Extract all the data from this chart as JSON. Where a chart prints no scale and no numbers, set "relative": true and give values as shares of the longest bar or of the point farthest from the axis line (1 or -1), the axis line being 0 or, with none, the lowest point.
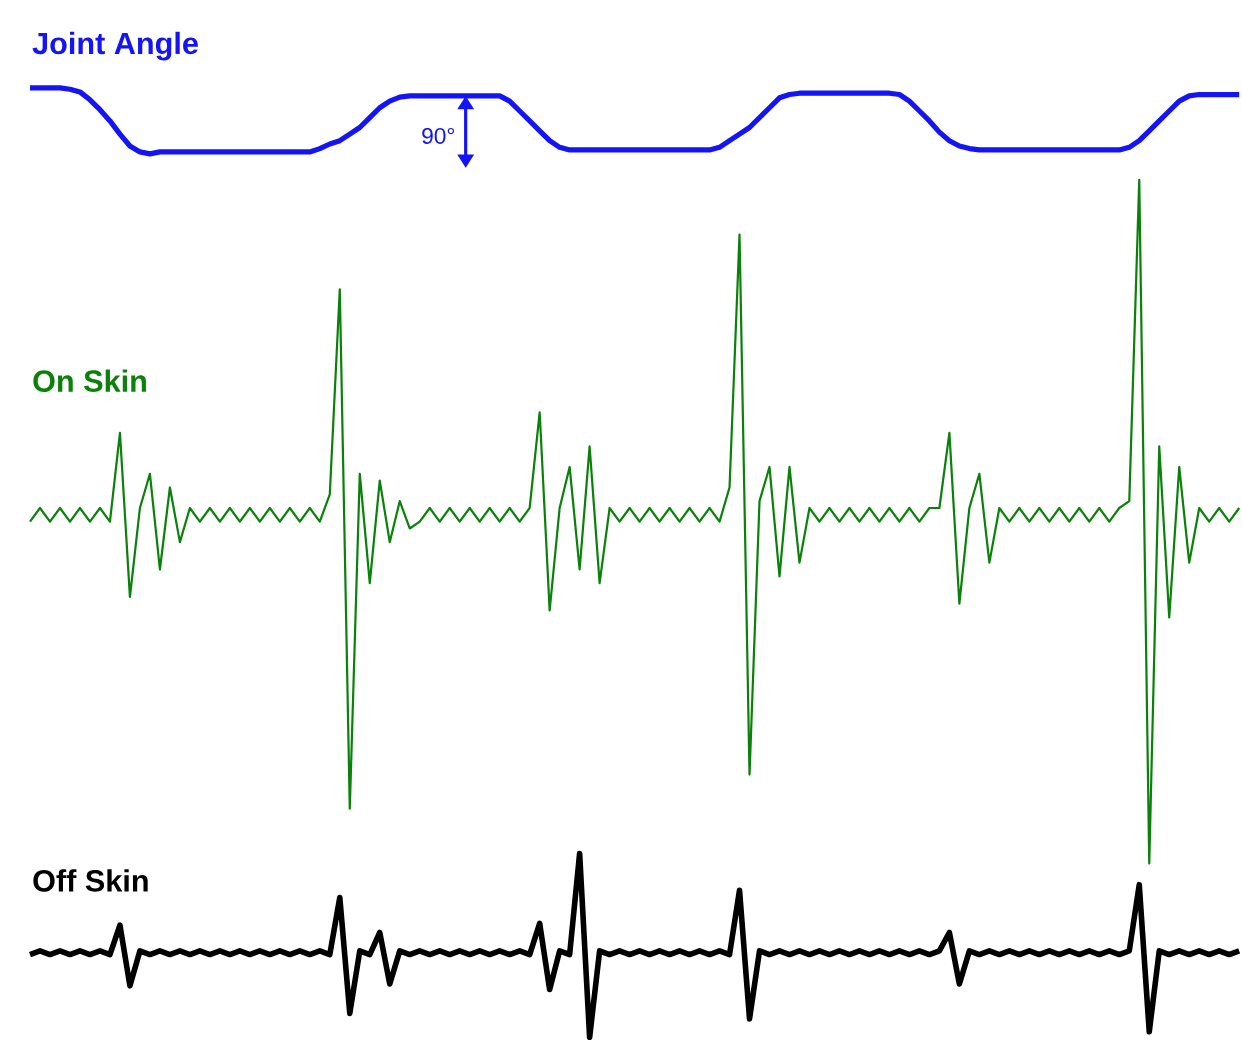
{
  "chart_data": [
    {
      "type": "line",
      "title": "Joint Angle",
      "relative": true,
      "color": "#1414f5",
      "annotations": [
        "90°"
      ],
      "categories": [
        null,
        null,
        null,
        null,
        null,
        null,
        null,
        null,
        null,
        null,
        null,
        null,
        null,
        null,
        null,
        null,
        null,
        null,
        null,
        null,
        null,
        null,
        null,
        null,
        null,
        null,
        null,
        null,
        null,
        null,
        null,
        null,
        null,
        null,
        null,
        null,
        null,
        null,
        null,
        null,
        null,
        null,
        null,
        null,
        null,
        null,
        null,
        null,
        null,
        null,
        null,
        null,
        null,
        null,
        null,
        null,
        null,
        null,
        null,
        null,
        null,
        null,
        null,
        null,
        null,
        null,
        null,
        null,
        null,
        null,
        null,
        null,
        null,
        null,
        null,
        null,
        null,
        null,
        null,
        null,
        null,
        null,
        null,
        null,
        null,
        null,
        null,
        null,
        null,
        null,
        null,
        null,
        null,
        null,
        null,
        null,
        null,
        null,
        null,
        null,
        null,
        null,
        null,
        null,
        null,
        null,
        null,
        null,
        null,
        null,
        null,
        null,
        null,
        null,
        null,
        null,
        null,
        null,
        null,
        null,
        null,
        null
      ],
      "values": [
        1,
        1,
        1,
        1,
        0.98,
        0.94,
        0.82,
        0.67,
        0.5,
        0.3,
        0.12,
        0.03,
        0,
        0.03,
        0.03,
        0.03,
        0.03,
        0.03,
        0.03,
        0.03,
        0.03,
        0.03,
        0.03,
        0.03,
        0.03,
        0.03,
        0.03,
        0.03,
        0.03,
        0.08,
        0.15,
        0.2,
        0.3,
        0.4,
        0.55,
        0.7,
        0.8,
        0.86,
        0.88,
        0.88,
        0.88,
        0.88,
        0.88,
        0.88,
        0.88,
        0.88,
        0.88,
        0.88,
        0.8,
        0.65,
        0.5,
        0.35,
        0.2,
        0.1,
        0.06,
        0.06,
        0.06,
        0.06,
        0.06,
        0.06,
        0.06,
        0.06,
        0.06,
        0.06,
        0.06,
        0.06,
        0.06,
        0.06,
        0.06,
        0.1,
        0.2,
        0.3,
        0.4,
        0.55,
        0.7,
        0.85,
        0.9,
        0.92,
        0.92,
        0.92,
        0.92,
        0.92,
        0.92,
        0.92,
        0.92,
        0.92,
        0.92,
        0.9,
        0.8,
        0.65,
        0.5,
        0.33,
        0.2,
        0.12,
        0.08,
        0.06,
        0.06,
        0.06,
        0.06,
        0.06,
        0.06,
        0.06,
        0.06,
        0.06,
        0.06,
        0.06,
        0.06,
        0.06,
        0.06,
        0.06,
        0.1,
        0.2,
        0.35,
        0.5,
        0.65,
        0.8,
        0.88,
        0.9,
        0.9,
        0.9,
        0.9,
        0.9
      ]
    },
    {
      "type": "line",
      "title": "On Skin",
      "relative": true,
      "color": "#0a820a",
      "categories": [
        null,
        null,
        null,
        null,
        null,
        null,
        null,
        null,
        null,
        null,
        null,
        null,
        null,
        null,
        null,
        null,
        null,
        null,
        null,
        null,
        null,
        null,
        null,
        null,
        null,
        null,
        null,
        null,
        null,
        null,
        null,
        null,
        null,
        null,
        null,
        null,
        null,
        null,
        null,
        null,
        null,
        null,
        null,
        null,
        null,
        null,
        null,
        null,
        null,
        null,
        null,
        null,
        null,
        null,
        null,
        null,
        null,
        null,
        null,
        null,
        null,
        null,
        null,
        null,
        null,
        null,
        null,
        null,
        null,
        null,
        null,
        null,
        null,
        null,
        null,
        null,
        null,
        null,
        null,
        null,
        null,
        null,
        null,
        null,
        null,
        null,
        null,
        null,
        null,
        null,
        null,
        null,
        null,
        null,
        null,
        null,
        null,
        null,
        null,
        null,
        null,
        null,
        null,
        null,
        null,
        null,
        null,
        null,
        null,
        null,
        null,
        null,
        null,
        null,
        null,
        null,
        null,
        null,
        null,
        null,
        null,
        null
      ],
      "values": [
        0.5,
        0.52,
        0.5,
        0.52,
        0.5,
        0.52,
        0.5,
        0.52,
        0.5,
        0.63,
        0.39,
        0.52,
        0.57,
        0.43,
        0.55,
        0.47,
        0.52,
        0.5,
        0.52,
        0.5,
        0.52,
        0.5,
        0.52,
        0.5,
        0.52,
        0.5,
        0.52,
        0.5,
        0.52,
        0.5,
        0.54,
        0.84,
        0.08,
        0.57,
        0.41,
        0.56,
        0.47,
        0.53,
        0.49,
        0.5,
        0.52,
        0.5,
        0.52,
        0.5,
        0.52,
        0.5,
        0.52,
        0.5,
        0.52,
        0.5,
        0.52,
        0.66,
        0.37,
        0.52,
        0.58,
        0.43,
        0.61,
        0.41,
        0.52,
        0.5,
        0.52,
        0.5,
        0.52,
        0.5,
        0.52,
        0.5,
        0.52,
        0.5,
        0.52,
        0.5,
        0.55,
        0.92,
        0.13,
        0.53,
        0.58,
        0.42,
        0.58,
        0.44,
        0.52,
        0.5,
        0.52,
        0.5,
        0.52,
        0.5,
        0.52,
        0.5,
        0.52,
        0.5,
        0.52,
        0.5,
        0.52,
        0.52,
        0.63,
        0.38,
        0.52,
        0.57,
        0.44,
        0.52,
        0.5,
        0.52,
        0.5,
        0.52,
        0.5,
        0.52,
        0.5,
        0.52,
        0.5,
        0.52,
        0.5,
        0.52,
        0.53,
        1,
        0,
        0.61,
        0.36,
        0.58,
        0.44,
        0.52,
        0.5,
        0.52,
        0.5,
        0.52
      ]
    },
    {
      "type": "line",
      "title": "Off Skin",
      "relative": true,
      "color": "#000000",
      "categories": [
        null,
        null,
        null,
        null,
        null,
        null,
        null,
        null,
        null,
        null,
        null,
        null,
        null,
        null,
        null,
        null,
        null,
        null,
        null,
        null,
        null,
        null,
        null,
        null,
        null,
        null,
        null,
        null,
        null,
        null,
        null,
        null,
        null,
        null,
        null,
        null,
        null,
        null,
        null,
        null,
        null,
        null,
        null,
        null,
        null,
        null,
        null,
        null,
        null,
        null,
        null,
        null,
        null,
        null,
        null,
        null,
        null,
        null,
        null,
        null,
        null,
        null,
        null,
        null,
        null,
        null,
        null,
        null,
        null,
        null,
        null,
        null,
        null,
        null,
        null,
        null,
        null,
        null,
        null,
        null,
        null,
        null,
        null,
        null,
        null,
        null,
        null,
        null,
        null,
        null,
        null,
        null,
        null,
        null,
        null,
        null,
        null,
        null,
        null,
        null,
        null,
        null,
        null,
        null,
        null,
        null,
        null,
        null,
        null,
        null,
        null,
        null,
        null,
        null,
        null,
        null,
        null,
        null,
        null,
        null,
        null,
        null
      ],
      "values": [
        0.45,
        0.47,
        0.45,
        0.47,
        0.45,
        0.47,
        0.45,
        0.47,
        0.45,
        0.61,
        0.28,
        0.47,
        0.45,
        0.47,
        0.45,
        0.47,
        0.45,
        0.47,
        0.45,
        0.47,
        0.45,
        0.47,
        0.45,
        0.47,
        0.45,
        0.47,
        0.45,
        0.47,
        0.45,
        0.47,
        0.45,
        0.76,
        0.13,
        0.47,
        0.45,
        0.57,
        0.29,
        0.47,
        0.45,
        0.47,
        0.45,
        0.47,
        0.45,
        0.47,
        0.45,
        0.47,
        0.45,
        0.47,
        0.45,
        0.47,
        0.45,
        0.62,
        0.26,
        0.47,
        0.45,
        1,
        0,
        0.47,
        0.45,
        0.47,
        0.45,
        0.47,
        0.45,
        0.47,
        0.45,
        0.47,
        0.45,
        0.47,
        0.45,
        0.47,
        0.45,
        0.8,
        0.1,
        0.47,
        0.45,
        0.47,
        0.45,
        0.47,
        0.45,
        0.47,
        0.45,
        0.47,
        0.45,
        0.47,
        0.45,
        0.47,
        0.45,
        0.47,
        0.45,
        0.47,
        0.45,
        0.47,
        0.57,
        0.29,
        0.47,
        0.45,
        0.47,
        0.45,
        0.47,
        0.45,
        0.47,
        0.45,
        0.47,
        0.45,
        0.47,
        0.45,
        0.47,
        0.45,
        0.47,
        0.45,
        0.47,
        0.83,
        0.03,
        0.47,
        0.45,
        0.47,
        0.45,
        0.47,
        0.45,
        0.47,
        0.45,
        0.47
      ]
    }
  ]
}
